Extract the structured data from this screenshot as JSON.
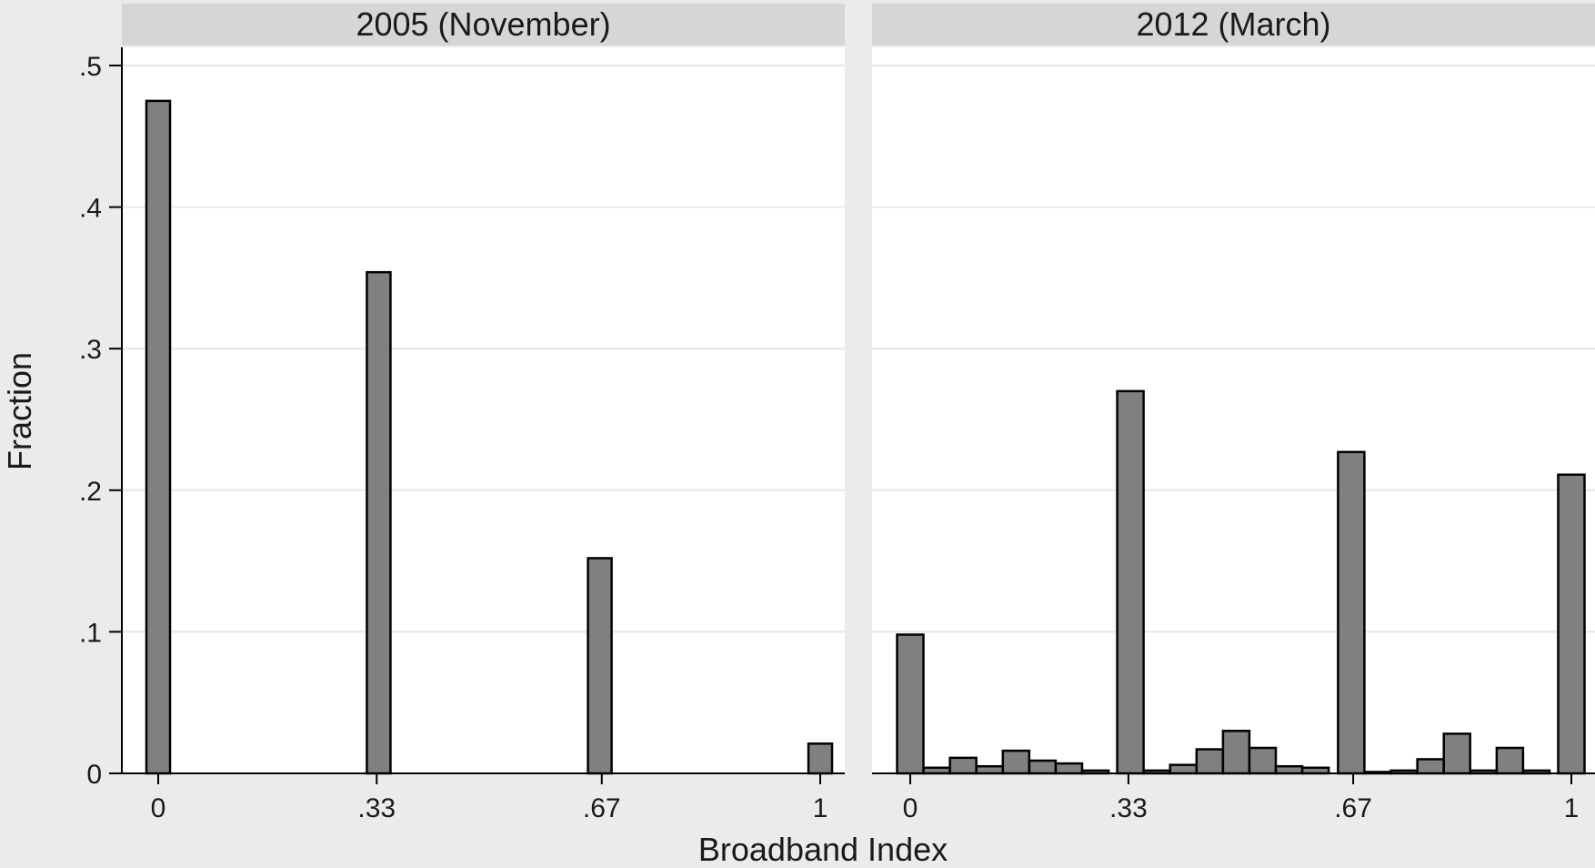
{
  "chart_data": {
    "type": "bar",
    "ylabel": "Fraction",
    "xlabel": "Broadband Index",
    "ylim": [
      0,
      0.5
    ],
    "yticks": [
      0,
      0.1,
      0.2,
      0.3,
      0.4,
      0.5
    ],
    "ytick_labels": [
      "0",
      ".1",
      ".2",
      ".3",
      ".4",
      ".5"
    ],
    "xticks": [
      0,
      0.33,
      0.67,
      1
    ],
    "xtick_labels": [
      "0",
      ".33",
      ".67",
      "1"
    ],
    "grid": true,
    "bar_color": "#808080",
    "panels": [
      {
        "title": "2005 (November)",
        "x": [
          0,
          0.333,
          0.667,
          1
        ],
        "values": [
          0.475,
          0.354,
          0.152,
          0.021
        ]
      },
      {
        "title": "2012 (March)",
        "x": [
          0,
          0.04,
          0.08,
          0.12,
          0.16,
          0.2,
          0.24,
          0.28,
          0.333,
          0.373,
          0.413,
          0.453,
          0.493,
          0.533,
          0.573,
          0.613,
          0.667,
          0.707,
          0.747,
          0.787,
          0.827,
          0.867,
          0.907,
          0.947,
          1
        ],
        "values": [
          0.098,
          0.004,
          0.011,
          0.005,
          0.016,
          0.009,
          0.007,
          0.002,
          0.27,
          0.002,
          0.006,
          0.017,
          0.03,
          0.018,
          0.005,
          0.004,
          0.227,
          0.001,
          0.002,
          0.01,
          0.028,
          0.002,
          0.018,
          0.002,
          0.211
        ]
      }
    ]
  }
}
